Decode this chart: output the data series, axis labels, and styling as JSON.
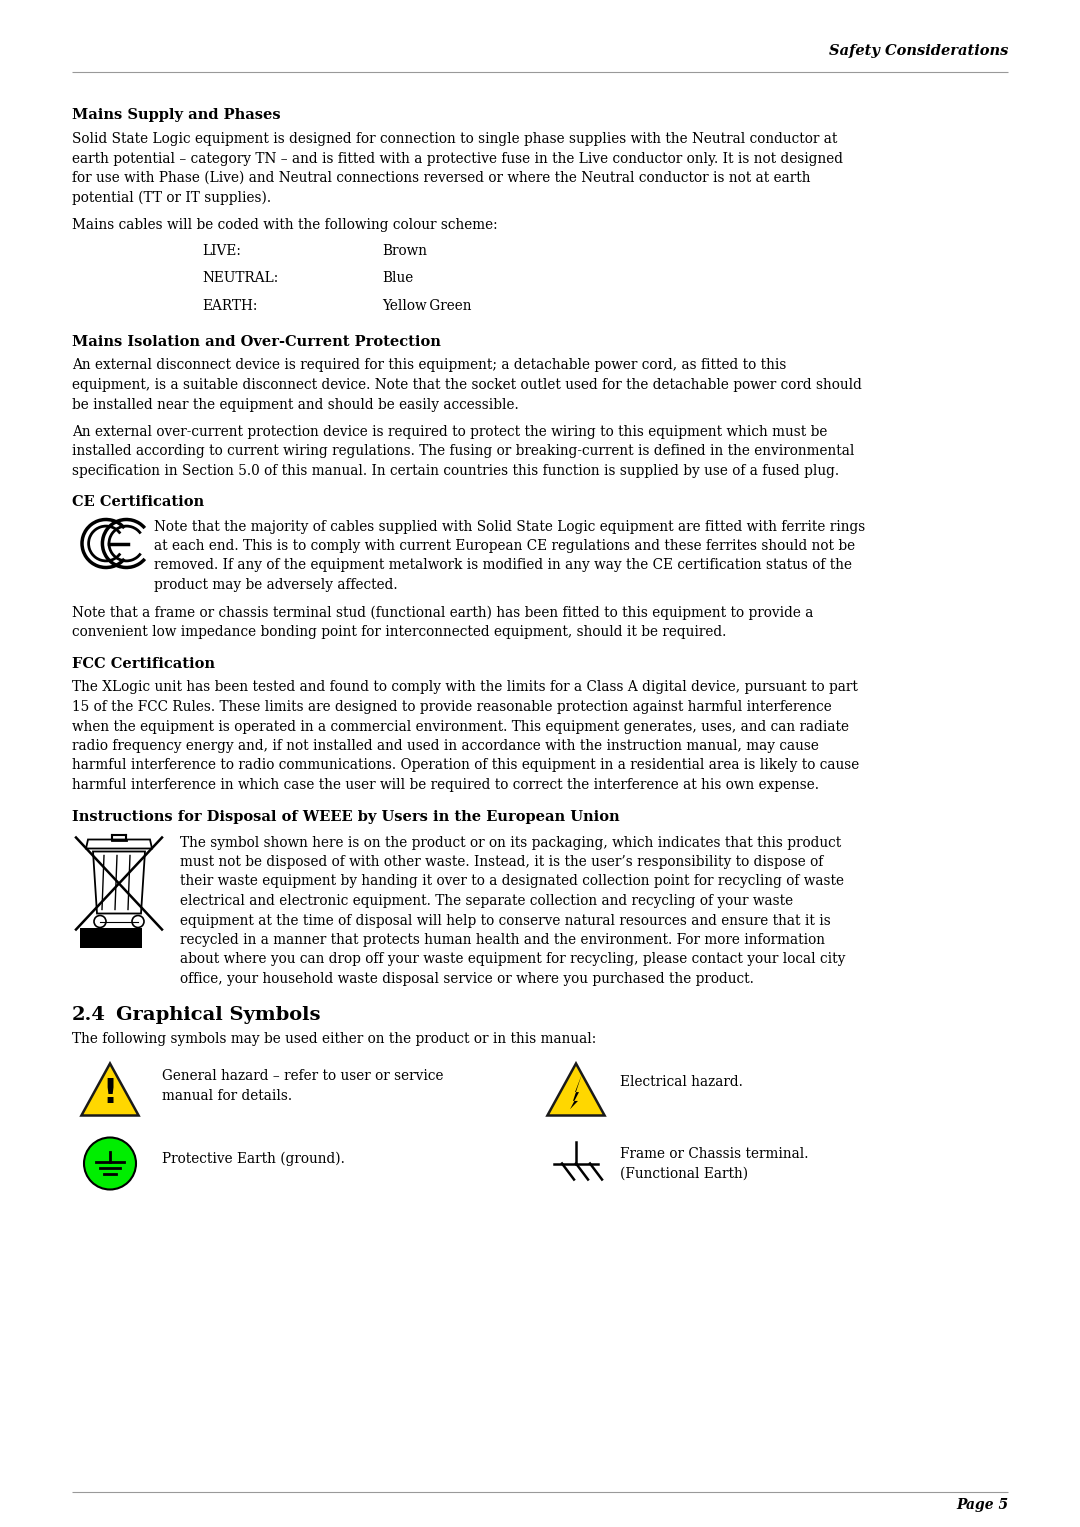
{
  "page_title_right": "Safety Considerations",
  "page_number": "Page 5",
  "background_color": "#ffffff",
  "text_color": "#000000",
  "line_color": "#999999",
  "section1_heading": "Mains Supply and Phases",
  "section1_para1_lines": [
    "Solid State Logic equipment is designed for connection to single phase supplies with the Neutral conductor at",
    "earth potential – category TN – and is fitted with a protective fuse in the Live conductor only. It is not designed",
    "for use with Phase (Live) and Neutral connections reversed or where the Neutral conductor is not at earth",
    "potential (TT or IT supplies)."
  ],
  "section1_para2": "Mains cables will be coded with the following colour scheme:",
  "colour_table": [
    [
      "LIVE:",
      "Brown"
    ],
    [
      "NEUTRAL:",
      "Blue"
    ],
    [
      "EARTH:",
      "Yellow Green"
    ]
  ],
  "section2_heading": "Mains Isolation and Over-Current Protection",
  "section2_para1_lines": [
    "An external disconnect device is required for this equipment; a detachable power cord, as fitted to this",
    "equipment, is a suitable disconnect device. Note that the socket outlet used for the detachable power cord should",
    "be installed near the equipment and should be easily accessible."
  ],
  "section2_para2_lines": [
    "An external over-current protection device is required to protect the wiring to this equipment which must be",
    "installed according to current wiring regulations. The fusing or breaking-current is defined in the environmental",
    "specification in Section 5.0 of this manual. In certain countries this function is supplied by use of a fused plug."
  ],
  "section3_heading": "CE Certification",
  "section3_para1_lines": [
    "Note that the majority of cables supplied with Solid State Logic equipment are fitted with ferrite rings",
    "at each end. This is to comply with current European CE regulations and these ferrites should not be",
    "removed. If any of the equipment metalwork is modified in any way the CE certification status of the",
    "product may be adversely affected."
  ],
  "section3_para2_lines": [
    "Note that a frame or chassis terminal stud (functional earth) has been fitted to this equipment to provide a",
    "convenient low impedance bonding point for interconnected equipment, should it be required."
  ],
  "section4_heading": "FCC Certification",
  "section4_para1_lines": [
    "The XLogic unit has been tested and found to comply with the limits for a Class A digital device, pursuant to part",
    "15 of the FCC Rules. These limits are designed to provide reasonable protection against harmful interference",
    "when the equipment is operated in a commercial environment. This equipment generates, uses, and can radiate",
    "radio frequency energy and, if not installed and used in accordance with the instruction manual, may cause",
    "harmful interference to radio communications. Operation of this equipment in a residential area is likely to cause",
    "harmful interference in which case the user will be required to correct the interference at his own expense."
  ],
  "section5_heading": "Instructions for Disposal of WEEE by Users in the European Union",
  "section5_para1_lines": [
    "The symbol shown here is on the product or on its packaging, which indicates that this product",
    "must not be disposed of with other waste. Instead, it is the user’s responsibility to dispose of",
    "their waste equipment by handing it over to a designated collection point for recycling of waste",
    "electrical and electronic equipment. The separate collection and recycling of your waste",
    "equipment at the time of disposal will help to conserve natural resources and ensure that it is",
    "recycled in a manner that protects human health and the environment. For more information",
    "about where you can drop off your waste equipment for recycling, please contact your local city",
    "office, your household waste disposal service or where you purchased the product."
  ],
  "section6_num": "2.4",
  "section6_title": "Graphical Symbols",
  "section6_intro": "The following symbols may be used either on the product or in this manual:",
  "symbol_labels": [
    "General hazard – refer to user or service\nmanual for details.",
    "Electrical hazard.",
    "Protective Earth (ground).",
    "Frame or Chassis terminal.\n(Functional Earth)"
  ]
}
